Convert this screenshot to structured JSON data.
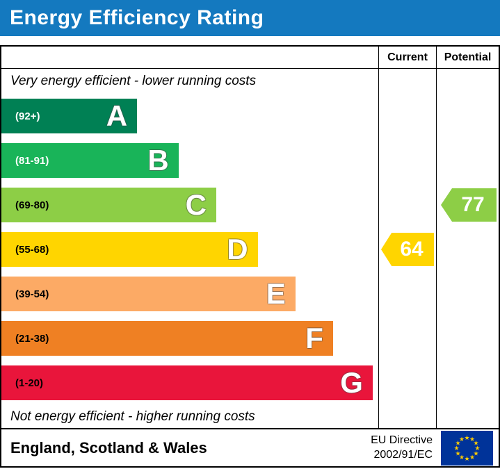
{
  "header": {
    "title": "Energy Efficiency Rating"
  },
  "colors": {
    "header_blue": "#1479bf"
  },
  "table": {
    "current_label": "Current",
    "potential_label": "Potential",
    "top_note": "Very energy efficient - lower running costs",
    "bottom_note": "Not energy efficient - higher running costs"
  },
  "bands": [
    {
      "letter": "A",
      "range": "(92+)",
      "color": "#008054",
      "range_color": "#ffffff",
      "width_pct": 36
    },
    {
      "letter": "B",
      "range": "(81-91)",
      "color": "#19b459",
      "range_color": "#ffffff",
      "width_pct": 47
    },
    {
      "letter": "C",
      "range": "(69-80)",
      "color": "#8dce46",
      "range_color": "#000000",
      "width_pct": 57
    },
    {
      "letter": "D",
      "range": "(55-68)",
      "color": "#ffd500",
      "range_color": "#000000",
      "width_pct": 68
    },
    {
      "letter": "E",
      "range": "(39-54)",
      "color": "#fcaa65",
      "range_color": "#000000",
      "width_pct": 78
    },
    {
      "letter": "F",
      "range": "(21-38)",
      "color": "#ef8023",
      "range_color": "#000000",
      "width_pct": 88
    },
    {
      "letter": "G",
      "range": "(1-20)",
      "color": "#e9153b",
      "range_color": "#000000",
      "width_pct": 98.5
    }
  ],
  "current": {
    "value": "64",
    "color": "#ffd500"
  },
  "potential": {
    "value": "77",
    "color": "#8dce46"
  },
  "footer": {
    "region": "England, Scotland & Wales",
    "directive_line1": "EU Directive",
    "directive_line2": "2002/91/EC"
  },
  "chart_data": {
    "type": "bar",
    "title": "Energy Efficiency Rating",
    "categories": [
      "A",
      "B",
      "C",
      "D",
      "E",
      "F",
      "G"
    ],
    "ranges": [
      "92+",
      "81-91",
      "69-80",
      "55-68",
      "39-54",
      "21-38",
      "1-20"
    ],
    "band_colors": [
      "#008054",
      "#19b459",
      "#8dce46",
      "#ffd500",
      "#fcaa65",
      "#ef8023",
      "#e9153b"
    ],
    "bar_relative_widths_pct": [
      36,
      47,
      57,
      68,
      78,
      88,
      98.5
    ],
    "current": 64,
    "current_band": "D",
    "potential": 77,
    "potential_band": "C",
    "annotations": [
      "Very energy efficient - lower running costs",
      "Not energy efficient - higher running costs"
    ],
    "footer_note": "England, Scotland & Wales — EU Directive 2002/91/EC"
  }
}
